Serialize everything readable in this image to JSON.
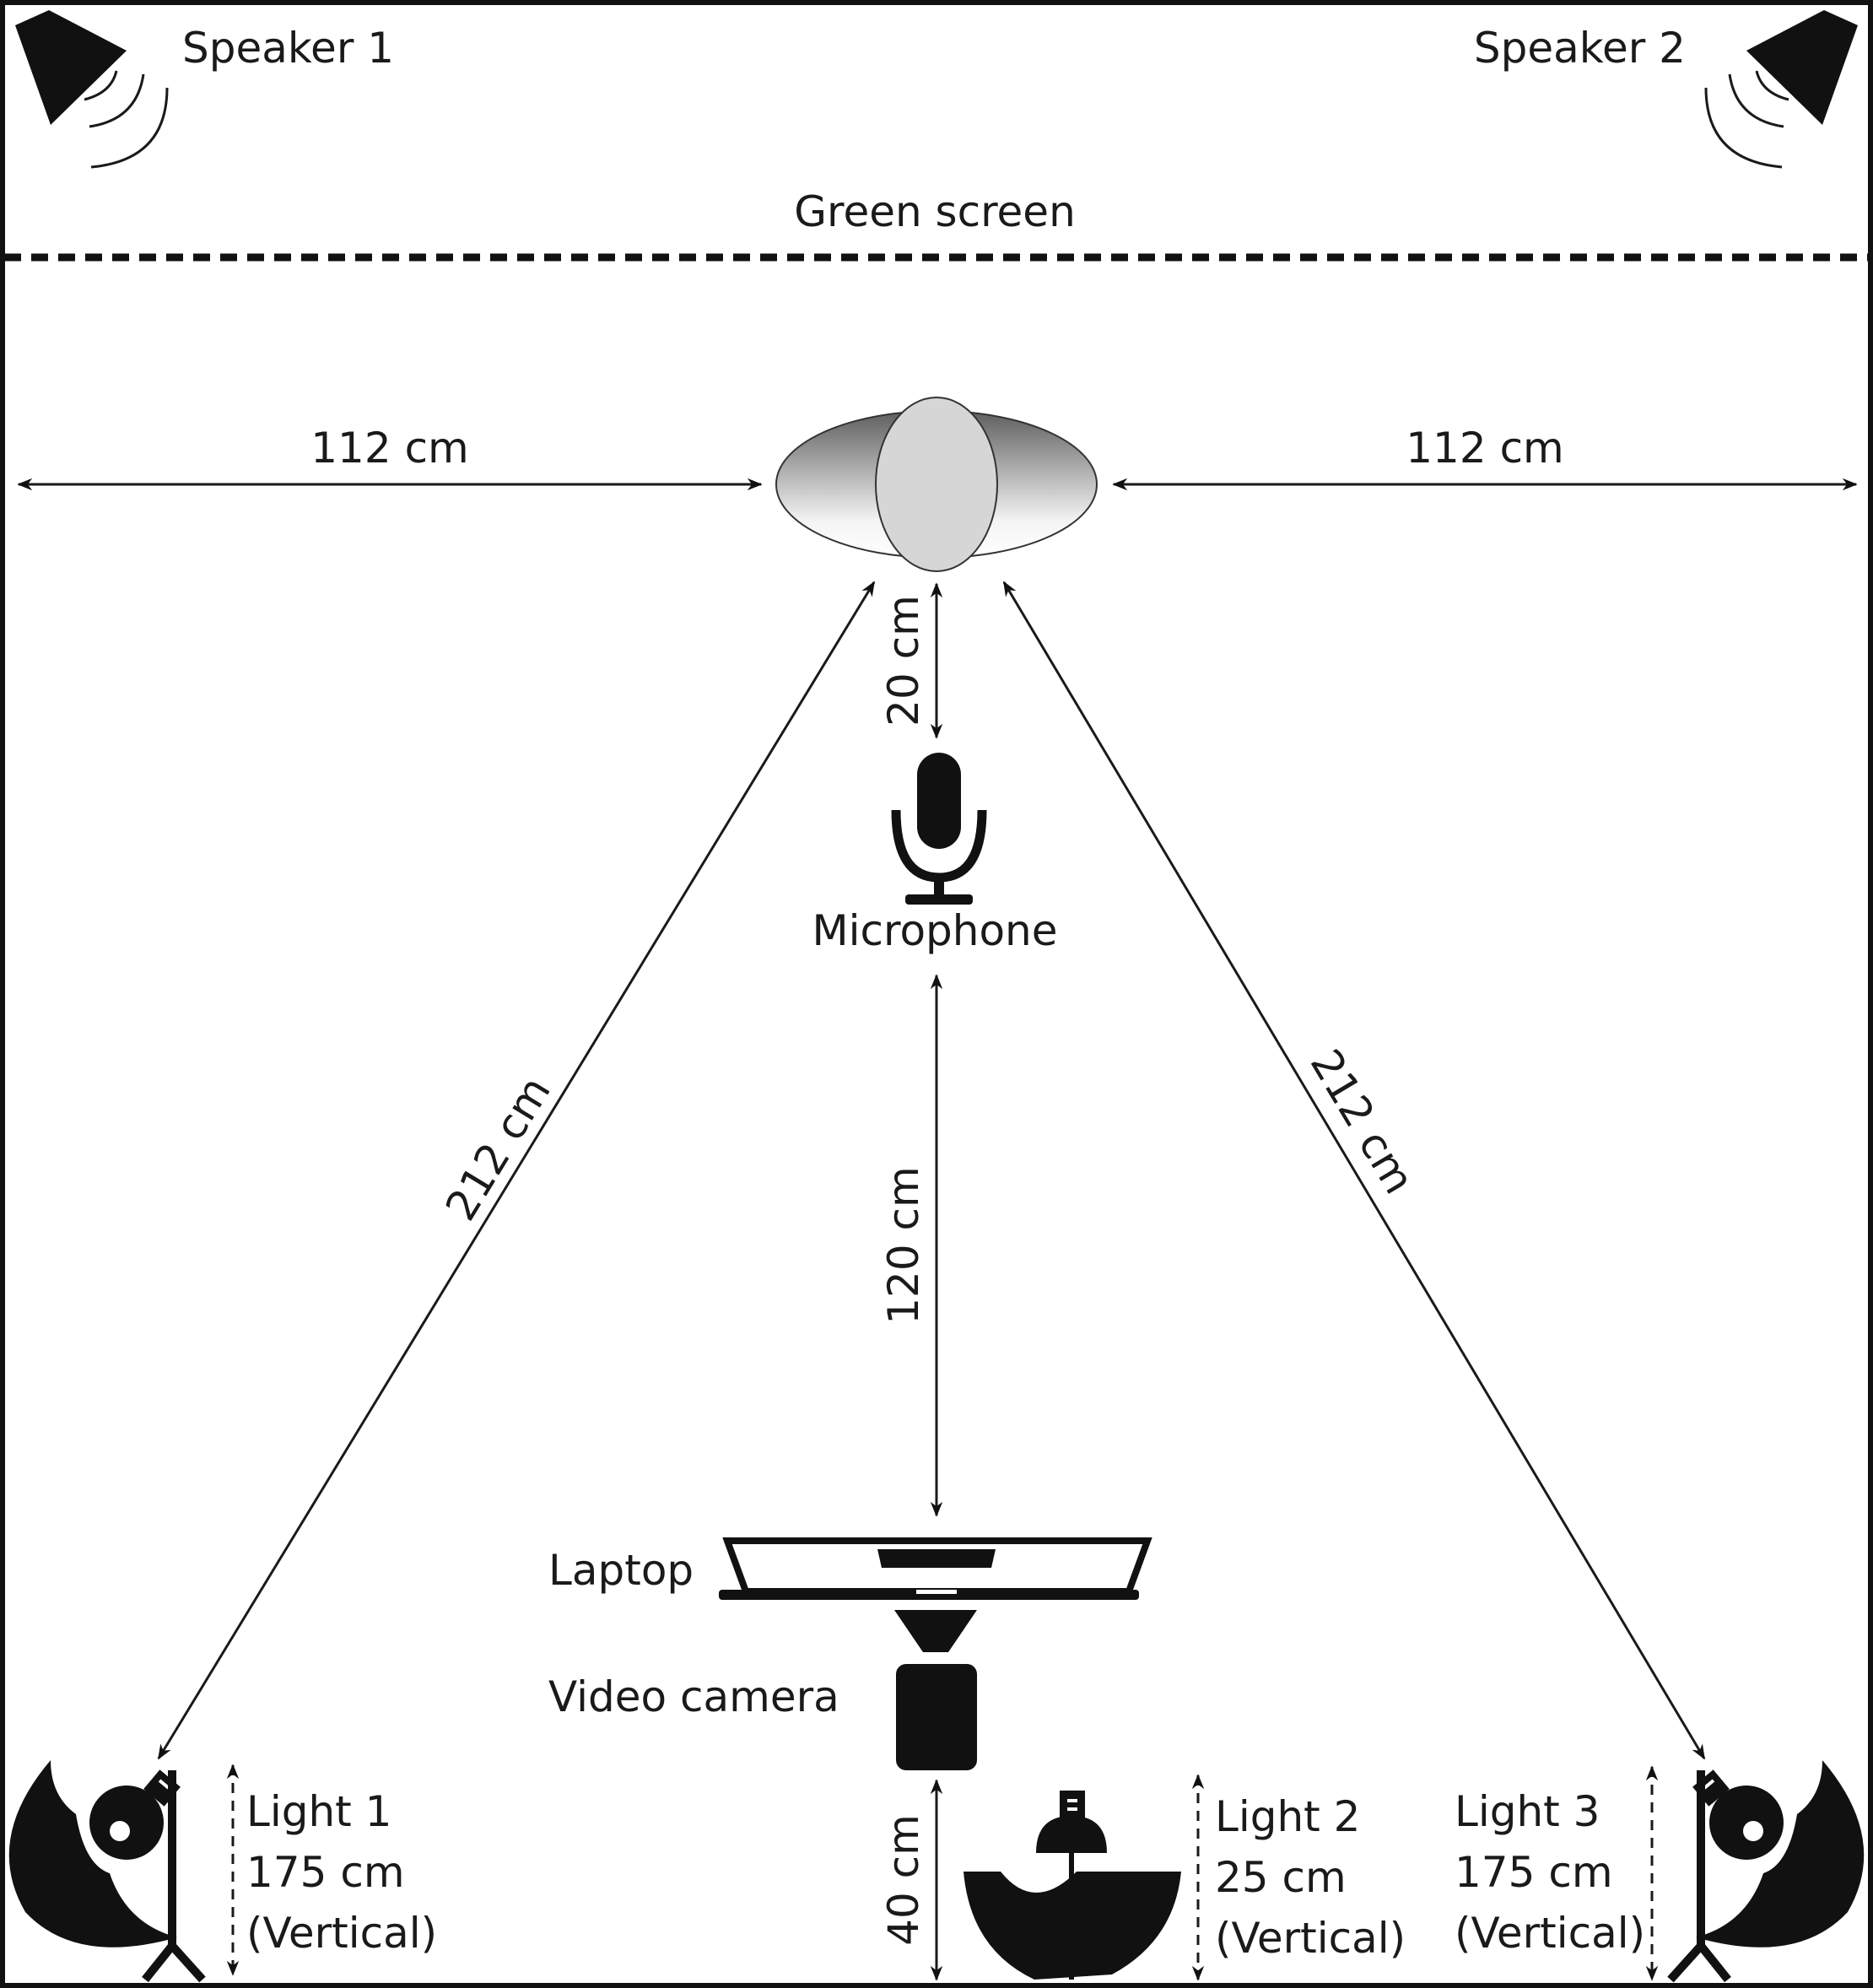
{
  "labels": {
    "speaker_1": "Speaker 1",
    "speaker_2": "Speaker 2",
    "green_screen": "Green screen",
    "microphone": "Microphone",
    "laptop": "Laptop",
    "video_camera": "Video camera",
    "light_1": [
      "Light 1",
      "175 cm",
      "(Vertical)"
    ],
    "light_2": [
      "Light 2",
      "25 cm",
      "(Vertical)"
    ],
    "light_3": [
      "Light 3",
      "175 cm",
      "(Vertical)"
    ]
  },
  "distances": {
    "left_wall_to_subject": "112 cm",
    "subject_to_right_wall": "112 cm",
    "subject_to_microphone": "20 cm",
    "microphone_to_laptop": "120 cm",
    "subject_to_light_1": "212 cm",
    "subject_to_light_3": "212 cm",
    "camera_to_bottom": "40 cm"
  },
  "icons": {
    "speaker": "speaker-icon",
    "microphone": "microphone-icon",
    "laptop": "laptop-icon",
    "camera": "video-camera-icon",
    "light": "umbrella-light-icon",
    "subject": "subject-head-icon"
  },
  "colors": {
    "ink": "#111111",
    "subject_fill_dark": "#6b6b6b",
    "subject_fill_light": "#f2f2f2",
    "head_fill": "#d6d6d6"
  }
}
